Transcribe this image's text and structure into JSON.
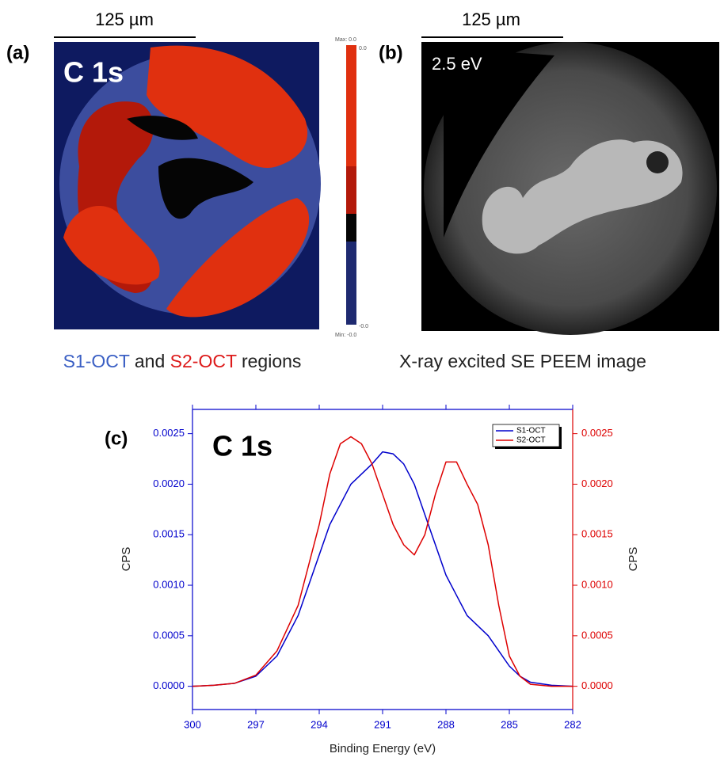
{
  "panel_a": {
    "label": "(a)",
    "scale_bar": "125 µm",
    "element": "C 1s",
    "colorbar": {
      "max_label": "Max: 0.0",
      "max_tick": "0.0",
      "min_label": "Min: -0.0",
      "min_tick": "-0.0"
    },
    "caption": {
      "s1": "S1-OCT",
      "and": "and",
      "s2": "S2-OCT",
      "end": "regions"
    }
  },
  "panel_b": {
    "label": "(b)",
    "scale_bar": "125 µm",
    "energy": "2.5 eV",
    "caption": "X-ray excited SE PEEM image"
  },
  "chart_data": {
    "type": "line",
    "panel_label": "(c)",
    "annotation": "C 1s",
    "xlabel": "Binding Energy (eV)",
    "ylabel": "CPS",
    "y2label": "CPS",
    "x": [
      300,
      299,
      298,
      297,
      296,
      295,
      294.5,
      294,
      293.5,
      293,
      292.5,
      292,
      291.5,
      291,
      290.5,
      290,
      289.5,
      289,
      288.5,
      288,
      287.5,
      287,
      286.5,
      286,
      285.5,
      285,
      284.5,
      284,
      283,
      282
    ],
    "series": [
      {
        "name": "S1-OCT",
        "color": "#0000cc",
        "values": [
          0,
          1e-05,
          3e-05,
          0.0001,
          0.0003,
          0.0007,
          0.001,
          0.0013,
          0.0016,
          0.0018,
          0.002,
          0.0021,
          0.0022,
          0.00232,
          0.0023,
          0.0022,
          0.002,
          0.0017,
          0.0014,
          0.0011,
          0.0009,
          0.0007,
          0.0006,
          0.0005,
          0.00035,
          0.0002,
          0.0001,
          4e-05,
          1e-05,
          0
        ]
      },
      {
        "name": "S2-OCT",
        "color": "#dd0000",
        "axis": "y2",
        "values": [
          0,
          1e-05,
          3e-05,
          0.00011,
          0.00035,
          0.0008,
          0.0012,
          0.0016,
          0.0021,
          0.0024,
          0.00247,
          0.0024,
          0.0022,
          0.0019,
          0.0016,
          0.0014,
          0.0013,
          0.0015,
          0.0019,
          0.00222,
          0.00222,
          0.002,
          0.0018,
          0.0014,
          0.0008,
          0.0003,
          0.0001,
          2e-05,
          0,
          0
        ]
      }
    ],
    "xlim": [
      300,
      282
    ],
    "xticks": [
      300,
      297,
      294,
      291,
      288,
      285,
      282
    ],
    "ylim": [
      -0.00023,
      0.00274
    ],
    "yticks": [
      {
        "value": 0,
        "label": "0.0000"
      },
      {
        "value": 0.0005,
        "label": "0.0005"
      },
      {
        "value": 0.001,
        "label": "0.0010"
      },
      {
        "value": 0.0015,
        "label": "0.0015"
      },
      {
        "value": 0.002,
        "label": "0.0020"
      },
      {
        "value": 0.0025,
        "label": "0.0025"
      }
    ],
    "y2lim": [
      -0.00023,
      0.00274
    ],
    "y2ticks": [
      {
        "value": 0,
        "label": "0.0000"
      },
      {
        "value": 0.0005,
        "label": "0.0005"
      },
      {
        "value": 0.001,
        "label": "0.0010"
      },
      {
        "value": 0.0015,
        "label": "0.0015"
      },
      {
        "value": 0.002,
        "label": "0.0020"
      },
      {
        "value": 0.0025,
        "label": "0.0025"
      }
    ],
    "legend": "upper right"
  }
}
